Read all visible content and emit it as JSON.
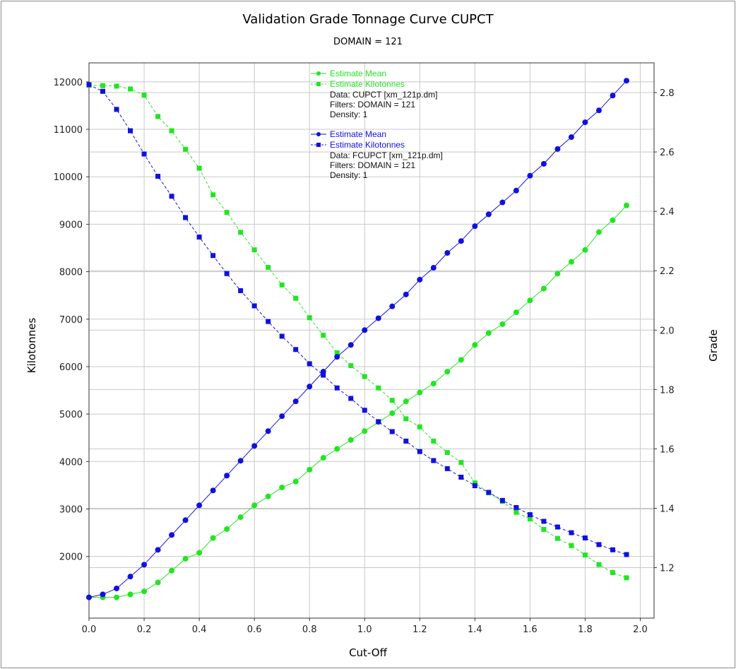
{
  "chart_data": {
    "type": "line",
    "title": "Validation Grade Tonnage Curve CUPCT",
    "subtitle": "DOMAIN = 121",
    "xlabel": "Cut-Off",
    "ylabel_left": "Kilotonnes",
    "ylabel_right": "Grade",
    "xlim": [
      0.0,
      2.05
    ],
    "ylim_left": [
      700,
      12400
    ],
    "ylim_right": [
      1.03,
      2.9
    ],
    "x_ticks": [
      "0.0",
      "0.2",
      "0.4",
      "0.6",
      "0.8",
      "1.0",
      "1.2",
      "1.4",
      "1.6",
      "1.8",
      "2.0"
    ],
    "y_left_ticks": [
      "2000",
      "3000",
      "4000",
      "5000",
      "6000",
      "7000",
      "8000",
      "9000",
      "10000",
      "11000",
      "12000"
    ],
    "y_right_ticks": [
      "1.2",
      "1.4",
      "1.6",
      "1.8",
      "2.0",
      "2.2",
      "2.4",
      "2.6",
      "2.8"
    ],
    "grid": true,
    "legend_position": "top-center",
    "x": [
      0.0,
      0.05,
      0.1,
      0.15,
      0.2,
      0.25,
      0.3,
      0.35,
      0.4,
      0.45,
      0.5,
      0.55,
      0.6,
      0.65,
      0.7,
      0.75,
      0.8,
      0.85,
      0.9,
      0.95,
      1.0,
      1.05,
      1.1,
      1.15,
      1.2,
      1.25,
      1.3,
      1.35,
      1.4,
      1.45,
      1.5,
      1.55,
      1.6,
      1.65,
      1.7,
      1.75,
      1.8,
      1.85,
      1.9,
      1.95
    ],
    "series": [
      {
        "name": "Estimate Mean",
        "group": "CUPCT",
        "axis": "right",
        "marker": "circle",
        "dash": "solid",
        "color": "#22e522",
        "values": [
          1.1,
          1.1,
          1.1,
          1.11,
          1.12,
          1.15,
          1.19,
          1.23,
          1.25,
          1.3,
          1.33,
          1.37,
          1.41,
          1.44,
          1.47,
          1.49,
          1.53,
          1.57,
          1.6,
          1.63,
          1.66,
          1.69,
          1.72,
          1.76,
          1.79,
          1.82,
          1.86,
          1.9,
          1.95,
          1.99,
          2.02,
          2.06,
          2.1,
          2.14,
          2.19,
          2.23,
          2.27,
          2.33,
          2.37,
          2.42
        ]
      },
      {
        "name": "Estimate Kilotonnes",
        "group": "CUPCT",
        "axis": "left",
        "marker": "square",
        "dash": "dashed",
        "color": "#22e522",
        "values": [
          11930,
          11920,
          11910,
          11850,
          11720,
          11270,
          10970,
          10580,
          10180,
          9620,
          9250,
          8830,
          8460,
          8090,
          7720,
          7440,
          7030,
          6660,
          6290,
          6020,
          5790,
          5550,
          5290,
          4900,
          4730,
          4430,
          4190,
          3980,
          3550,
          3340,
          3160,
          2930,
          2790,
          2570,
          2380,
          2230,
          2030,
          1830,
          1660,
          1550
        ]
      },
      {
        "name": "Estimate Mean",
        "group": "FCUPCT",
        "axis": "right",
        "marker": "circle",
        "dash": "solid",
        "color": "#1010e0",
        "values": [
          1.1,
          1.11,
          1.13,
          1.17,
          1.21,
          1.26,
          1.31,
          1.36,
          1.41,
          1.46,
          1.51,
          1.56,
          1.61,
          1.66,
          1.71,
          1.76,
          1.81,
          1.86,
          1.91,
          1.95,
          2.0,
          2.04,
          2.08,
          2.12,
          2.17,
          2.21,
          2.26,
          2.3,
          2.35,
          2.39,
          2.43,
          2.47,
          2.52,
          2.56,
          2.61,
          2.65,
          2.7,
          2.74,
          2.79,
          2.84
        ]
      },
      {
        "name": "Estimate Kilotonnes",
        "group": "FCUPCT",
        "axis": "left",
        "marker": "square",
        "dash": "dashed",
        "color": "#1010e0",
        "values": [
          11940,
          11800,
          11420,
          10970,
          10480,
          10010,
          9590,
          9140,
          8730,
          8340,
          7960,
          7600,
          7280,
          6950,
          6640,
          6360,
          6060,
          5820,
          5550,
          5330,
          5080,
          4840,
          4630,
          4430,
          4210,
          4020,
          3850,
          3670,
          3490,
          3350,
          3180,
          3030,
          2880,
          2740,
          2620,
          2500,
          2390,
          2250,
          2140,
          2040
        ]
      }
    ],
    "legend_groups": [
      {
        "group": "CUPCT",
        "color": "#22e522",
        "mean_label": "Estimate Mean",
        "kt_label": "Estimate Kilotonnes",
        "data_line": "Data: CUPCT [xm_121p.dm]",
        "filters_line": "Filters: DOMAIN = 121",
        "density_line": "Density: 1"
      },
      {
        "group": "FCUPCT",
        "color": "#1010e0",
        "mean_label": "Estimate Mean",
        "kt_label": "Estimate Kilotonnes",
        "data_line": "Data: FCUPCT [xm_121p.dm]",
        "filters_line": "Filters: DOMAIN = 121",
        "density_line": "Density: 1"
      }
    ]
  }
}
